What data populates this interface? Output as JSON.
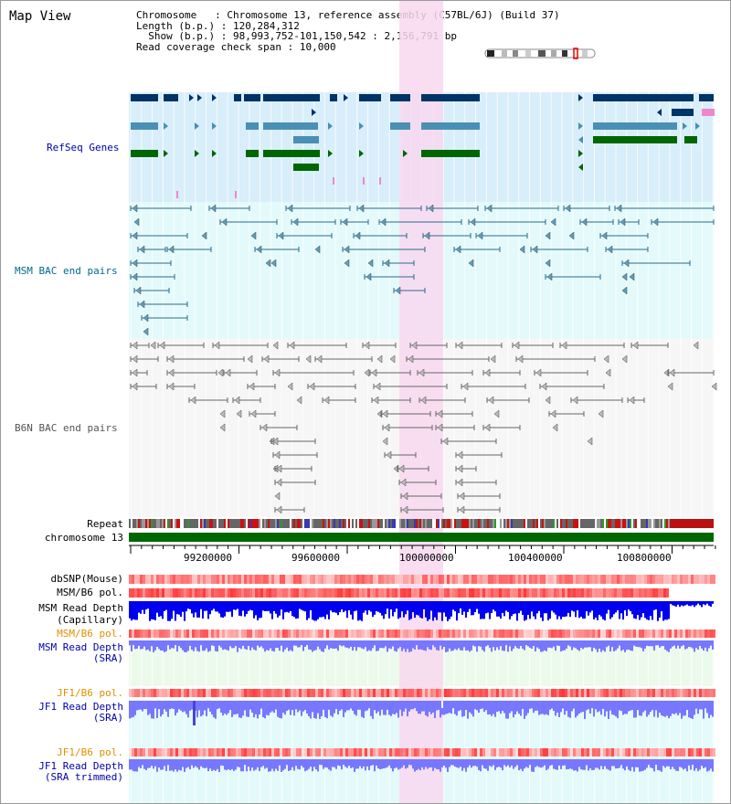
{
  "title": "Map View",
  "info": {
    "chromosome_label": "Chromosome",
    "chromosome_value": "Chromosome 13, reference assembly (C57BL/6J) (Build 37)",
    "length_label": "Length (b.p.)",
    "length_value": "120,284,312",
    "show_label": "Show (b.p.)",
    "show_value": "98,993,752-101,150,542 : 2,156,791 bp",
    "coverage_label": "Read coverage check span",
    "coverage_value": "10,000"
  },
  "tracks": {
    "refseq": "RefSeq Genes",
    "msm_bac": "MSM BAC end pairs",
    "b6n_bac": "B6N BAC end pairs",
    "repeat": "Repeat",
    "chromosome": "chromosome 13",
    "dbsnp": "dbSNP(Mouse)",
    "msm_b6_pol": "MSM/B6 pol.",
    "msm_depth_cap_1": "MSM Read Depth",
    "msm_depth_cap_2": "(Capillary)",
    "msm_b6_pol_sra": "MSM/B6 pol.",
    "msm_depth_sra_1": "MSM Read Depth",
    "msm_depth_sra_2": "(SRA)",
    "jf1_b6_pol": "JF1/B6 pol.",
    "jf1_depth_1": "JF1 Read Depth",
    "jf1_depth_2": "(SRA)",
    "jf1_b6_pol_2": "JF1/B6 pol.",
    "jf1_trim_1": "JF1 Read Depth",
    "jf1_trim_2": "(SRA trimmed)"
  },
  "axis": {
    "ticks": [
      "99200000",
      "99600000",
      "100000000",
      "100400000",
      "100800000"
    ]
  },
  "colors": {
    "highlight": "#f8d8f0",
    "refseq_bg": "#d8eefa",
    "msm_bg": "#e4fafa",
    "b6n_bg": "#f6f6f6",
    "dark_blue": "#003366",
    "mid_blue": "#4a8fb5",
    "green": "#006600",
    "msm_bac": "#2a6a8a",
    "b6n_bac": "#777777",
    "depth_blue": "#0000ee",
    "depth_light": "#7777ff",
    "label_blue": "#0000aa",
    "label_teal": "#006a8a",
    "label_orange": "#e09000"
  }
}
